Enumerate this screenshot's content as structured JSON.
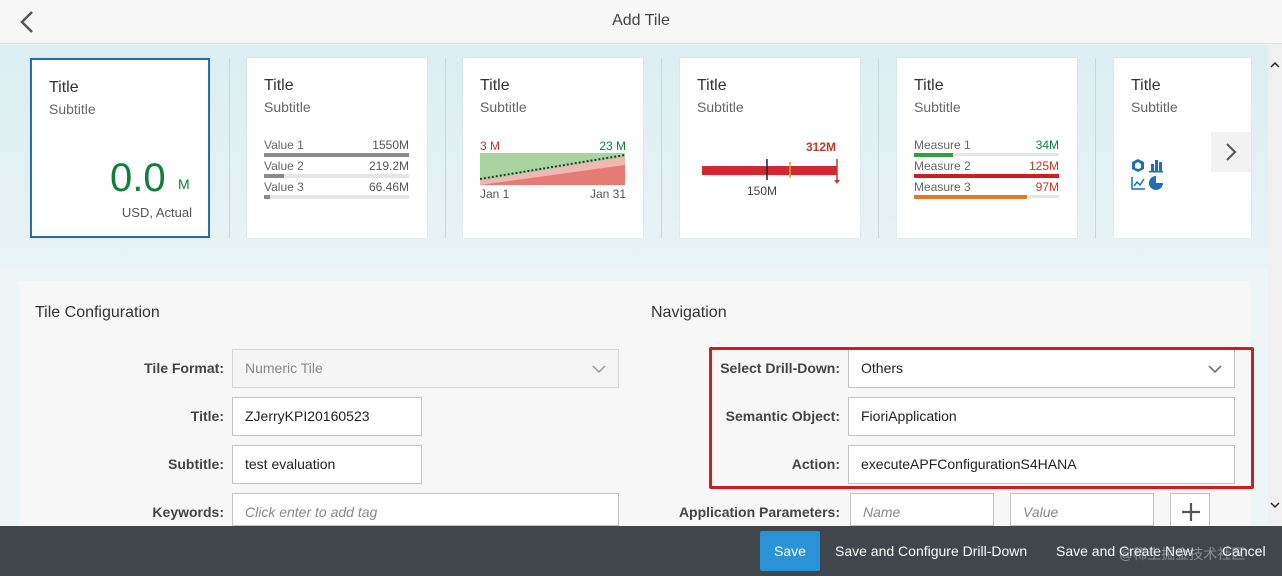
{
  "header": {
    "title": "Add Tile",
    "back_icon": "chevron-left-icon"
  },
  "tiles": [
    {
      "title": "Title",
      "subtitle": "Subtitle",
      "value": "0.0",
      "unit": "M",
      "footer": "USD, Actual"
    },
    {
      "title": "Title",
      "subtitle": "Subtitle",
      "rows": [
        {
          "label": "Value 1",
          "value": "1550M",
          "fill": 1.0
        },
        {
          "label": "Value 2",
          "value": "219.2M",
          "fill": 0.14
        },
        {
          "label": "Value 3",
          "value": "66.46M",
          "fill": 0.04
        }
      ]
    },
    {
      "title": "Title",
      "subtitle": "Subtitle",
      "top_left": "3 M",
      "top_right": "23 M",
      "bottom_left": "Jan 1",
      "bottom_right": "Jan 31"
    },
    {
      "title": "Title",
      "subtitle": "Subtitle",
      "value": "312M",
      "target": "150M"
    },
    {
      "title": "Title",
      "subtitle": "Subtitle",
      "rows": [
        {
          "label": "Measure 1",
          "value": "34M",
          "fill": 0.27,
          "color": "#2e9e3f"
        },
        {
          "label": "Measure 2",
          "value": "125M",
          "fill": 1.0,
          "color": "#cc1f1f"
        },
        {
          "label": "Measure 3",
          "value": "97M",
          "fill": 0.78,
          "color": "#e07b22"
        }
      ]
    },
    {
      "title": "Title",
      "subtitle": "Subtitle",
      "icons": [
        "cube-icon",
        "bar-chart-icon",
        "line-chart-icon",
        "pie-chart-icon"
      ]
    }
  ],
  "colors": {
    "accent": "#2a6ea8",
    "positive": "#107e3e",
    "negative": "#cc1f1f",
    "primary_button": "#2a93d5",
    "footer": "#3f474d"
  },
  "config": {
    "section_title": "Tile Configuration",
    "tile_format": {
      "label": "Tile Format:",
      "value": "Numeric Tile"
    },
    "title": {
      "label": "Title:",
      "value": "ZJerryKPI20160523"
    },
    "subtitle": {
      "label": "Subtitle:",
      "value": "test evaluation"
    },
    "keywords": {
      "label": "Keywords:",
      "placeholder": "Click enter to add tag"
    }
  },
  "navigation": {
    "section_title": "Navigation",
    "drilldown": {
      "label": "Select Drill-Down:",
      "value": "Others"
    },
    "semantic_object": {
      "label": "Semantic Object:",
      "value": "FioriApplication"
    },
    "action": {
      "label": "Action:",
      "value": "executeAPFConfigurationS4HANA"
    },
    "app_params": {
      "label": "Application Parameters:",
      "name_placeholder": "Name",
      "value_placeholder": "Value"
    }
  },
  "footer": {
    "save": "Save",
    "save_configure": "Save and Configure Drill-Down",
    "save_create": "Save and Create New",
    "cancel": "Cancel",
    "watermark": "@稀土掘金技术社区"
  }
}
